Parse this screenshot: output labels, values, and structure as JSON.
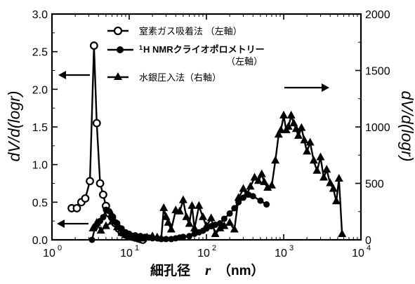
{
  "chart_data": {
    "type": "line",
    "xscale": "log",
    "xlim": [
      1,
      10000
    ],
    "ylim_left": [
      0,
      3.0
    ],
    "ylim_right": [
      0,
      2000
    ],
    "xlabel_main": "細孔径",
    "xlabel_var": "r",
    "xlabel_unit": "（nm）",
    "ylabel_left": "dV/d(logr)",
    "ylabel_right": "dV/d(logr)",
    "x_ticks": [
      {
        "value": 1,
        "base": "10",
        "exp": "0"
      },
      {
        "value": 10,
        "base": "10",
        "exp": "1"
      },
      {
        "value": 100,
        "base": "10",
        "exp": "2"
      },
      {
        "value": 1000,
        "base": "10",
        "exp": "3"
      },
      {
        "value": 10000,
        "base": "10",
        "exp": "4"
      }
    ],
    "y_left_ticks": [
      "0.0",
      "0.5",
      "1.0",
      "1.5",
      "2.0",
      "2.5",
      "3.0"
    ],
    "y_right_ticks": [
      "0",
      "500",
      "1000",
      "1500",
      "2000"
    ],
    "series": [
      {
        "name": "窒素ガス吸着法 （左軸）",
        "axis": "left",
        "marker": "open-circle",
        "x": [
          1.8,
          2.1,
          2.4,
          2.7,
          3.1,
          3.5,
          3.8,
          4.2,
          4.6,
          5.0,
          5.5,
          6.0,
          6.6,
          7.3,
          8.0,
          9.0,
          10,
          11,
          12,
          13,
          14,
          15
        ],
        "y": [
          0.42,
          0.42,
          0.5,
          0.55,
          0.78,
          2.58,
          1.55,
          0.75,
          0.6,
          0.45,
          0.35,
          0.3,
          0.22,
          0.15,
          0.1,
          0.07,
          0.05,
          0.04,
          0.03,
          0.02,
          0.01,
          0.0
        ]
      },
      {
        "name": "¹H NMRクライオポロメトリー （左軸）",
        "axis": "left",
        "marker": "filled-circle",
        "x": [
          3.3,
          3.6,
          3.9,
          4.2,
          4.6,
          5.0,
          5.5,
          6.0,
          7,
          8,
          9,
          10,
          12,
          14,
          16,
          18,
          20,
          23,
          26,
          30,
          35,
          40,
          45,
          50,
          60,
          70,
          80,
          90,
          100,
          115,
          130,
          150,
          170,
          200,
          230,
          260,
          300,
          350,
          400,
          500,
          600
        ],
        "y": [
          0.0,
          0.16,
          0.22,
          0.25,
          0.3,
          0.4,
          0.38,
          0.3,
          0.22,
          0.15,
          0.1,
          0.08,
          0.06,
          0.05,
          0.04,
          0.03,
          0.02,
          0.02,
          0.01,
          0.01,
          0.01,
          0.02,
          0.03,
          0.04,
          0.05,
          0.08,
          0.1,
          0.12,
          0.15,
          0.18,
          0.2,
          0.22,
          0.28,
          0.35,
          0.42,
          0.5,
          0.56,
          0.6,
          0.58,
          0.52,
          0.47
        ]
      },
      {
        "name": "水銀圧入法（右軸）",
        "axis": "right",
        "marker": "filled-triangle",
        "x": [
          3.4,
          3.8,
          4.3,
          5,
          6,
          7,
          8,
          9,
          10,
          11.5,
          13,
          15,
          17,
          20,
          23,
          26,
          28,
          30,
          32,
          35,
          40,
          45,
          50,
          55,
          60,
          65,
          70,
          80,
          90,
          100,
          115,
          130,
          150,
          170,
          200,
          230,
          260,
          300,
          330,
          370,
          420,
          470,
          520,
          560,
          620,
          700,
          780,
          860,
          920,
          1000,
          1080,
          1150,
          1250,
          1350,
          1450,
          1550,
          1700,
          1850,
          2000,
          2200,
          2450,
          2700,
          3000,
          3300,
          3600,
          4000,
          4400,
          4800,
          5200,
          5700
        ],
        "y": [
          100,
          150,
          80,
          120,
          160,
          110,
          60,
          40,
          30,
          20,
          15,
          10,
          20,
          30,
          20,
          10,
          280,
          200,
          150,
          90,
          260,
          250,
          350,
          200,
          140,
          300,
          100,
          300,
          200,
          120,
          190,
          50,
          100,
          120,
          150,
          90,
          370,
          450,
          400,
          470,
          550,
          520,
          580,
          510,
          460,
          480,
          700,
          930,
          970,
          1100,
          970,
          1000,
          1100,
          1030,
          980,
          920,
          990,
          880,
          780,
          860,
          700,
          610,
          730,
          550,
          620,
          500,
          450,
          340,
          540,
          50
        ]
      }
    ]
  },
  "legend": {
    "nitrogen": "窒素ガス吸着法 （左軸）",
    "nmr_sup": "1",
    "nmr_line1": "H NMRクライオポロメトリー",
    "nmr_line2": "（左軸）",
    "mercury": "水銀圧入法（右軸）"
  }
}
